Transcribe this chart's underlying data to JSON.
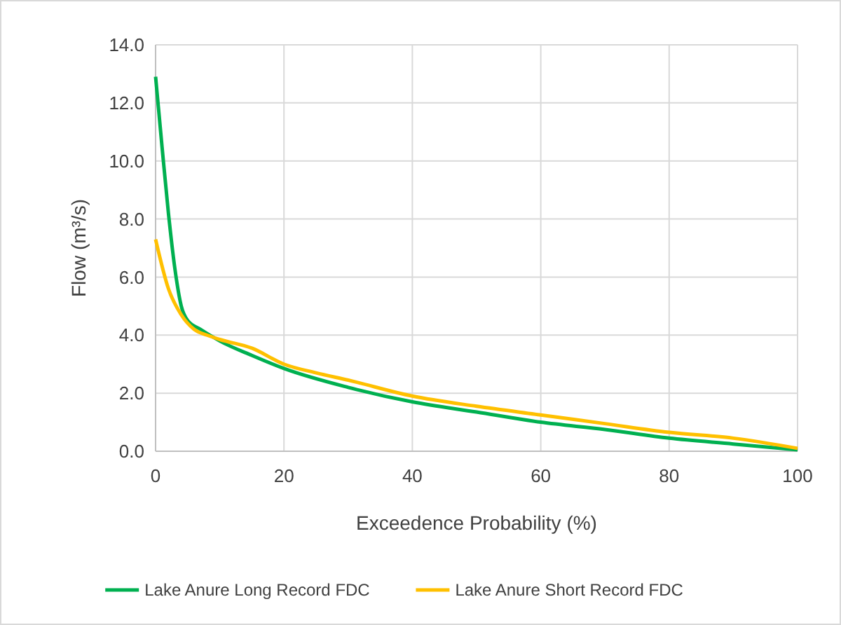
{
  "chart_data": {
    "type": "line",
    "xlabel": "Exceedence Probability (%)",
    "ylabel": "Flow (m³/s)",
    "xlim": [
      0,
      100
    ],
    "xticks": [
      0,
      20,
      40,
      60,
      80,
      100
    ],
    "ylim": [
      0,
      14
    ],
    "yticks": [
      {
        "value": 0,
        "label": "0.0"
      },
      {
        "value": 2,
        "label": "2.0"
      },
      {
        "value": 4,
        "label": "4.0"
      },
      {
        "value": 6,
        "label": "6.0"
      },
      {
        "value": 8,
        "label": "8.0"
      },
      {
        "value": 10,
        "label": "10.0"
      },
      {
        "value": 12,
        "label": "12.0"
      },
      {
        "value": 14,
        "label": "14.0"
      }
    ],
    "grid": true,
    "legend": "bottom",
    "marker": "none",
    "line_style": "solid",
    "series": [
      {
        "name": "Lake Anure Long Record FDC",
        "color": "#00b050",
        "x": [
          0,
          1,
          2,
          3,
          4,
          5,
          7,
          10,
          15,
          20,
          30,
          40,
          50,
          60,
          70,
          80,
          90,
          100
        ],
        "values": [
          12.9,
          10.5,
          8.2,
          6.3,
          5.0,
          4.5,
          4.2,
          3.8,
          3.3,
          2.85,
          2.2,
          1.7,
          1.35,
          1.0,
          0.75,
          0.45,
          0.25,
          0.05
        ]
      },
      {
        "name": "Lake Anure Short Record FDC",
        "color": "#ffc000",
        "x": [
          0,
          2,
          4,
          6,
          8,
          10,
          15,
          20,
          25,
          30,
          40,
          50,
          60,
          70,
          80,
          90,
          100
        ],
        "values": [
          7.3,
          5.6,
          4.7,
          4.2,
          4.0,
          3.85,
          3.55,
          3.0,
          2.7,
          2.45,
          1.9,
          1.55,
          1.25,
          0.95,
          0.65,
          0.45,
          0.1
        ]
      }
    ]
  }
}
